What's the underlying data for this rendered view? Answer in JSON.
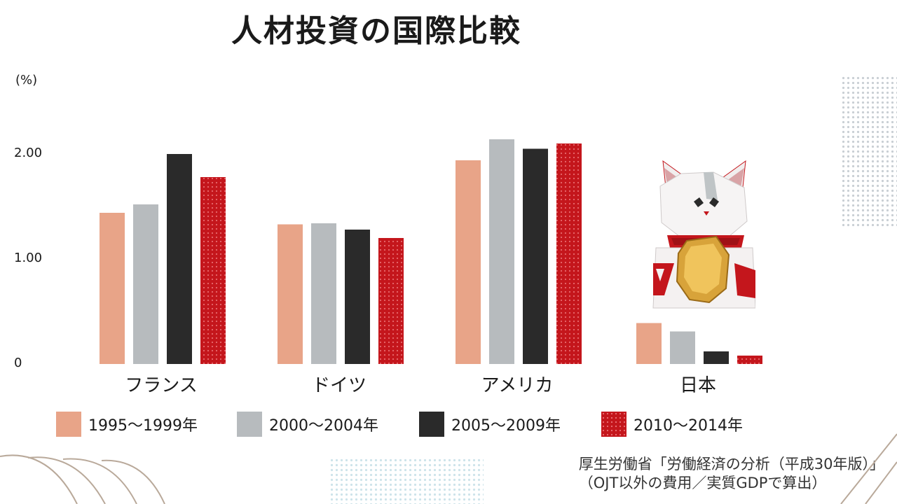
{
  "chart_data": {
    "type": "bar",
    "title": "人材投資の国際比較",
    "ylabel": "(%)",
    "ylim": [
      0,
      2.2
    ],
    "yticks": [
      {
        "value": 0,
        "label": "0"
      },
      {
        "value": 1,
        "label": "1.00"
      },
      {
        "value": 2,
        "label": "2.00"
      }
    ],
    "categories": [
      "フランス",
      "ドイツ",
      "アメリカ",
      "日本"
    ],
    "series": [
      {
        "name": "1995～1999年",
        "color": "#e8a488",
        "pattern": "none",
        "values": [
          1.44,
          1.33,
          1.94,
          0.39
        ]
      },
      {
        "name": "2000～2004年",
        "color": "#b7bbbe",
        "pattern": "none",
        "values": [
          1.52,
          1.34,
          2.14,
          0.31
        ]
      },
      {
        "name": "2005～2009年",
        "color": "#2a2a2a",
        "pattern": "none",
        "values": [
          2.0,
          1.28,
          2.05,
          0.12
        ]
      },
      {
        "name": "2010～2014年",
        "color": "#c4161c",
        "pattern": "dots",
        "values": [
          1.78,
          1.2,
          2.1,
          0.08
        ]
      }
    ],
    "grid": false,
    "legend_position": "bottom"
  },
  "source": {
    "line1": "厚生労働省「労働経済の分析（平成30年版）」",
    "line2": "（OJT以外の費用／実質GDPで算出）"
  },
  "illustration": {
    "name": "maneki-neko-icon"
  }
}
